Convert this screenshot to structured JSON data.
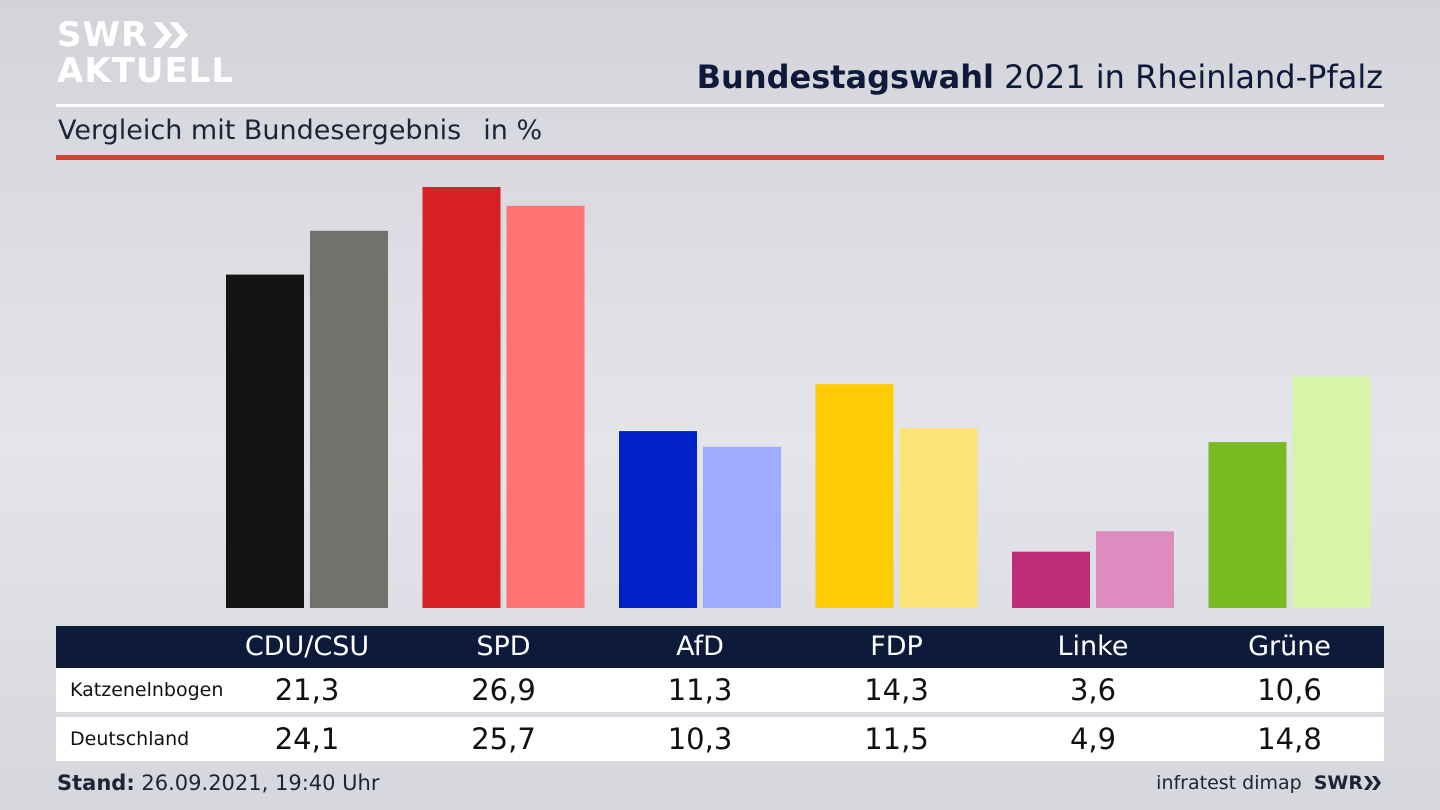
{
  "logo": {
    "line1": "SWR",
    "line2": "AKTUELL"
  },
  "header": {
    "title_bold": "Bundestagswahl",
    "title_rest": " 2021 in Rheinland-Pfalz"
  },
  "subtitle": {
    "text": "Vergleich mit Bundesergebnis",
    "unit": "in %"
  },
  "footer": {
    "stand_label": "Stand:",
    "stand_value": " 26.09.2021, 19:40 Uhr",
    "source": "infratest dimap",
    "brand": "SWR"
  },
  "colors": {
    "accent_red": "#d44234",
    "navy": "#0e1a3a"
  },
  "chart_data": {
    "type": "bar",
    "title": "Bundestagswahl 2021 in Rheinland-Pfalz",
    "subtitle": "Vergleich mit Bundesergebnis in %",
    "categories": [
      "CDU/CSU",
      "SPD",
      "AfD",
      "FDP",
      "Linke",
      "Grüne"
    ],
    "series": [
      {
        "name": "Katzenelnbogen",
        "values": [
          21.3,
          26.9,
          11.3,
          14.3,
          3.6,
          10.6
        ],
        "labels": [
          "21,3",
          "26,9",
          "11,3",
          "14,3",
          "3,6",
          "10,6"
        ]
      },
      {
        "name": "Deutschland",
        "values": [
          24.1,
          25.7,
          10.3,
          11.5,
          4.9,
          14.8
        ],
        "labels": [
          "24,1",
          "25,7",
          "10,3",
          "11,5",
          "4,9",
          "14,8"
        ]
      }
    ],
    "colors_primary": [
      "#141414",
      "#d91f26",
      "#0020c8",
      "#ffcb05",
      "#be2e78",
      "#7aba21"
    ],
    "colors_secondary": [
      "#73716e",
      "#ff7472",
      "#9eabff",
      "#fde27a",
      "#e08bbf",
      "#d6f5a8"
    ],
    "ylim": [
      0,
      27
    ]
  }
}
